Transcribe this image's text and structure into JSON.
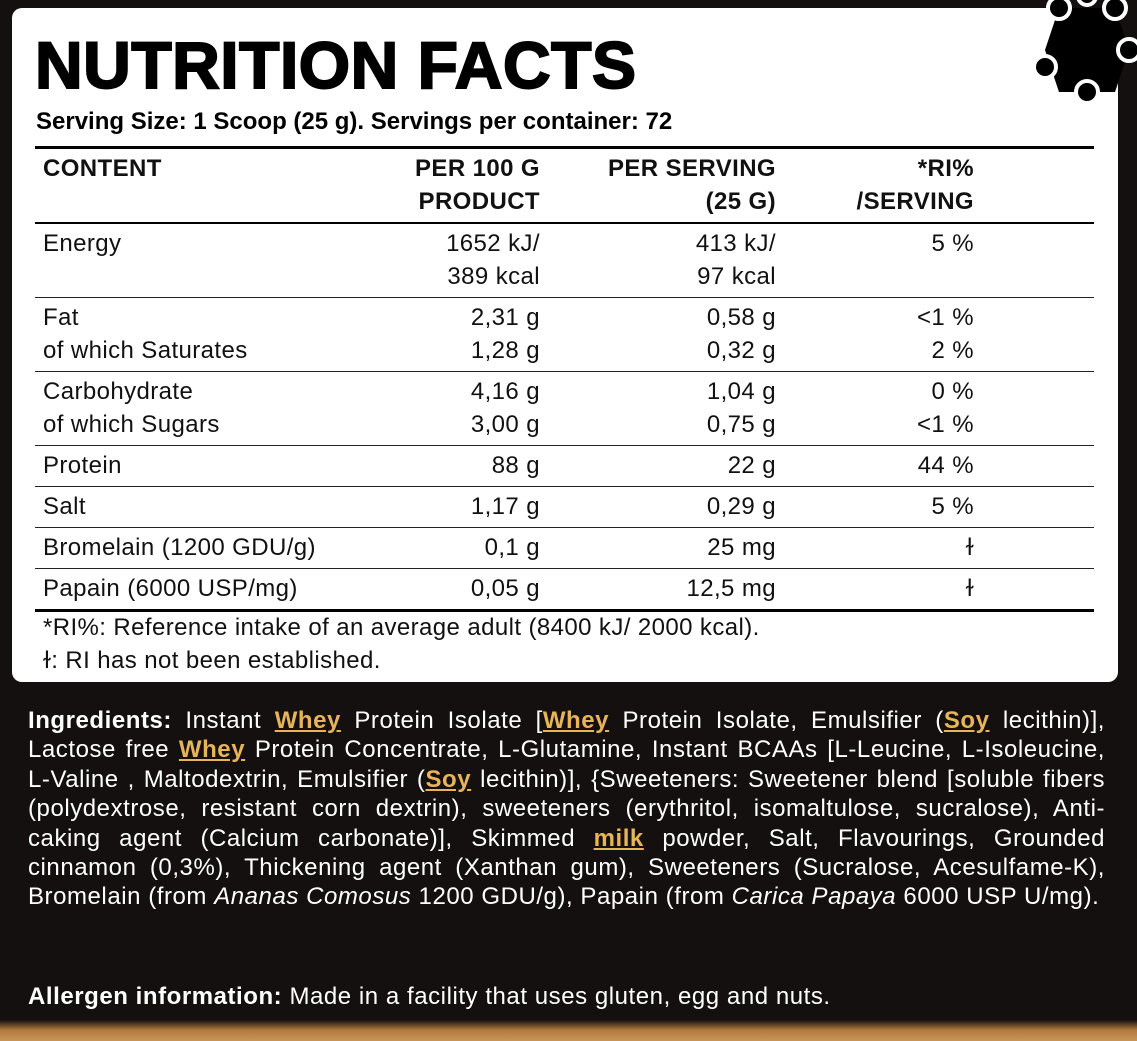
{
  "header": {
    "title": "NUTRITION FACTS",
    "serving": "Serving Size: 1 Scoop (25 g). Servings per container: 72"
  },
  "table": {
    "columns": [
      [
        "CONTENT"
      ],
      [
        "PER 100 G",
        "PRODUCT"
      ],
      [
        "PER SERVING",
        "(25 G)"
      ],
      [
        "*RI%",
        "/SERVING"
      ]
    ],
    "rows": [
      [
        [
          "Energy"
        ],
        [
          "1652 kJ/",
          "389 kcal"
        ],
        [
          "413 kJ/",
          "97 kcal"
        ],
        [
          "5 %"
        ]
      ],
      [
        [
          "Fat",
          "of which Saturates"
        ],
        [
          "2,31 g",
          "1,28 g"
        ],
        [
          "0,58 g",
          "0,32 g"
        ],
        [
          "<1 %",
          "2 %"
        ]
      ],
      [
        [
          "Carbohydrate",
          "of which Sugars"
        ],
        [
          "4,16 g",
          "3,00 g"
        ],
        [
          "1,04 g",
          "0,75 g"
        ],
        [
          "0 %",
          "<1 %"
        ]
      ],
      [
        [
          "Protein"
        ],
        [
          "88 g"
        ],
        [
          "22 g"
        ],
        [
          "44 %"
        ]
      ],
      [
        [
          "Salt"
        ],
        [
          "1,17 g"
        ],
        [
          "0,29 g"
        ],
        [
          "5 %"
        ]
      ],
      [
        [
          "Bromelain (1200 GDU/g)"
        ],
        [
          "0,1 g"
        ],
        [
          "25 mg"
        ],
        [
          "ɫ"
        ]
      ],
      [
        [
          "Papain (6000 USP/mg)"
        ],
        [
          "0,05 g"
        ],
        [
          "12,5 mg"
        ],
        [
          "ɫ"
        ]
      ]
    ]
  },
  "footnotes": [
    "*RI%: Reference intake of an average adult (8400 kJ/ 2000 kcal).",
    "ɫ: RI has not been established."
  ],
  "ingredients": {
    "label": "Ingredients:",
    "segments": [
      {
        "text": " Instant "
      },
      {
        "text": "Whey",
        "style": "allergen"
      },
      {
        "text": " Protein Isolate ["
      },
      {
        "text": "Whey",
        "style": "allergen"
      },
      {
        "text": " Protein Isolate, Emulsifier ("
      },
      {
        "text": "Soy",
        "style": "allergen"
      },
      {
        "text": " lecithin)], Lactose free "
      },
      {
        "text": "Whey",
        "style": "allergen"
      },
      {
        "text": " Protein Concentrate, L-Glutamine, Instant BCAAs [L-Leucine, L-Isoleucine, L-Valine , Maltodextrin, Emulsifier ("
      },
      {
        "text": "Soy",
        "style": "allergen"
      },
      {
        "text": " lecithin)], {Sweeteners: Sweetener blend [soluble fibers (polydextrose, resistant corn dextrin), sweeteners (erythritol, isomaltulose, sucralose), Anti-caking agent (Calcium carbonate)], Skimmed "
      },
      {
        "text": "milk",
        "style": "allergen"
      },
      {
        "text": " powder, Salt, Flavourings, Grounded cinnamon (0,3%), Thickening agent (Xanthan gum), Sweeteners (Sucralose, Acesulfame-K), Bromelain (from "
      },
      {
        "text": "Ananas Comosus",
        "style": "italic"
      },
      {
        "text": " 1200 GDU/g), Papain (from "
      },
      {
        "text": "Carica Papaya",
        "style": "italic"
      },
      {
        "text": " 6000 USP U/mg)."
      }
    ]
  },
  "allergens": {
    "label": "Allergen information:",
    "text": " Made in a facility that uses gluten, egg and nuts."
  }
}
